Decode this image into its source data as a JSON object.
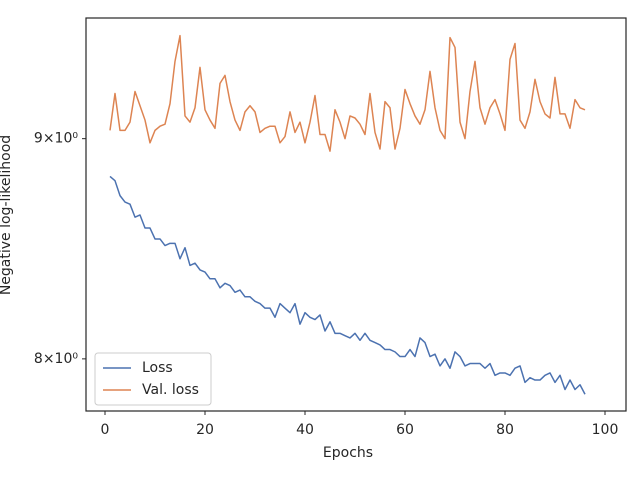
{
  "chart_data": {
    "type": "line",
    "xlabel": "Epochs",
    "ylabel": "Negative log-likelihood",
    "x": [
      1,
      2,
      3,
      4,
      5,
      6,
      7,
      8,
      9,
      10,
      11,
      12,
      13,
      14,
      15,
      16,
      17,
      18,
      19,
      20,
      21,
      22,
      23,
      24,
      25,
      26,
      27,
      28,
      29,
      30,
      31,
      32,
      33,
      34,
      35,
      36,
      37,
      38,
      39,
      40,
      41,
      42,
      43,
      44,
      45,
      46,
      47,
      48,
      49,
      50,
      51,
      52,
      53,
      54,
      55,
      56,
      57,
      58,
      59,
      60,
      61,
      62,
      63,
      64,
      65,
      66,
      67,
      68,
      69,
      70,
      71,
      72,
      73,
      74,
      75,
      76,
      77,
      78,
      79,
      80,
      81,
      82,
      83,
      84,
      85,
      86,
      87,
      88,
      89,
      90,
      91,
      92,
      93,
      94,
      95,
      96
    ],
    "series": [
      {
        "name": "Loss",
        "color": "#4c72b0",
        "values": [
          8.82,
          8.8,
          8.73,
          8.7,
          8.69,
          8.63,
          8.64,
          8.58,
          8.58,
          8.53,
          8.53,
          8.5,
          8.51,
          8.51,
          8.44,
          8.49,
          8.41,
          8.42,
          8.39,
          8.38,
          8.35,
          8.35,
          8.31,
          8.33,
          8.32,
          8.29,
          8.3,
          8.27,
          8.27,
          8.25,
          8.24,
          8.22,
          8.22,
          8.18,
          8.24,
          8.22,
          8.2,
          8.24,
          8.15,
          8.2,
          8.18,
          8.17,
          8.19,
          8.12,
          8.16,
          8.11,
          8.11,
          8.1,
          8.09,
          8.11,
          8.08,
          8.11,
          8.08,
          8.07,
          8.06,
          8.04,
          8.04,
          8.03,
          8.01,
          8.01,
          8.04,
          8.01,
          8.09,
          8.07,
          8.01,
          8.02,
          7.97,
          8.0,
          7.96,
          8.03,
          8.01,
          7.97,
          7.98,
          7.98,
          7.98,
          7.96,
          7.98,
          7.93,
          7.94,
          7.94,
          7.93,
          7.96,
          7.97,
          7.9,
          7.92,
          7.91,
          7.91,
          7.93,
          7.94,
          7.9,
          7.93,
          7.87,
          7.91,
          7.87,
          7.89,
          7.85
        ]
      },
      {
        "name": "Val. loss",
        "color": "#dd8452",
        "values": [
          9.04,
          9.22,
          9.04,
          9.04,
          9.08,
          9.23,
          9.16,
          9.09,
          8.98,
          9.04,
          9.06,
          9.07,
          9.17,
          9.38,
          9.51,
          9.11,
          9.08,
          9.15,
          9.35,
          9.14,
          9.09,
          9.05,
          9.27,
          9.31,
          9.18,
          9.09,
          9.04,
          9.13,
          9.16,
          9.13,
          9.03,
          9.05,
          9.06,
          9.06,
          8.98,
          9.01,
          9.13,
          9.03,
          9.08,
          8.98,
          9.08,
          9.21,
          9.02,
          9.02,
          8.94,
          9.14,
          9.08,
          9.0,
          9.11,
          9.1,
          9.07,
          9.02,
          9.22,
          9.03,
          8.95,
          9.18,
          9.15,
          8.95,
          9.05,
          9.24,
          9.17,
          9.11,
          9.07,
          9.14,
          9.33,
          9.15,
          9.04,
          9.0,
          9.5,
          9.45,
          9.08,
          9.0,
          9.23,
          9.38,
          9.15,
          9.07,
          9.15,
          9.19,
          9.12,
          9.04,
          9.39,
          9.47,
          9.09,
          9.05,
          9.13,
          9.29,
          9.18,
          9.12,
          9.1,
          9.3,
          9.12,
          9.12,
          9.05,
          9.19,
          9.15,
          9.14
        ]
      }
    ],
    "xlim": [
      -3.8,
      104.2
    ],
    "xticks": [
      0,
      20,
      40,
      60,
      80,
      100
    ],
    "ylim": [
      7.78,
      9.6
    ],
    "yticks": [
      {
        "value": 8,
        "label": "8×10⁰"
      },
      {
        "value": 9,
        "label": "9×10⁰"
      }
    ],
    "yscale": "log",
    "legend": "lower left"
  }
}
